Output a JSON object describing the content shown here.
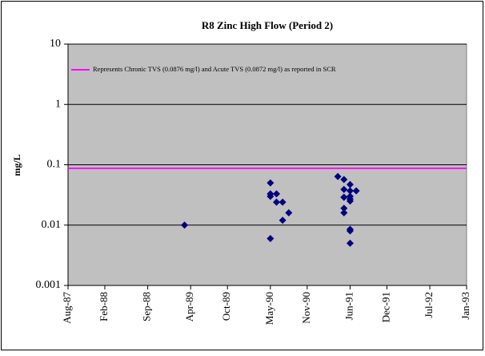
{
  "chart_data": {
    "type": "scatter",
    "title": "R8 Zinc High Flow (Period 2)",
    "y_label": "mg/L",
    "log_y": true,
    "grid": true,
    "plot_background": "#c0c0c0",
    "ylim": [
      0.001,
      10
    ],
    "yticks": [
      10,
      1,
      0.1,
      0.01,
      0.001
    ],
    "xlim": [
      "1987-08",
      "1993-01"
    ],
    "xticks": [
      {
        "value": "1987-08",
        "label": "Aug-87"
      },
      {
        "value": "1988-02",
        "label": "Feb-88"
      },
      {
        "value": "1988-09",
        "label": "Sep-88"
      },
      {
        "value": "1989-04",
        "label": "Apr-89"
      },
      {
        "value": "1989-10",
        "label": "Oct-89"
      },
      {
        "value": "1990-05",
        "label": "May-90"
      },
      {
        "value": "1990-11",
        "label": "Nov-90"
      },
      {
        "value": "1991-06",
        "label": "Jun-91"
      },
      {
        "value": "1991-12",
        "label": "Dec-91"
      },
      {
        "value": "1992-07",
        "label": "Jul-92"
      },
      {
        "value": "1993-01",
        "label": "Jan-93"
      }
    ],
    "reference_lines": {
      "name": "Represents Chronic TVS (0.0876 mg/l) and Acute TVS (0.0872 mg/l) as reported in SCR",
      "color": "#ff00ff",
      "values": [
        0.0876,
        0.0872
      ]
    },
    "series": [
      {
        "color": "#000080",
        "x": [
          "1989-03",
          "1990-05",
          "1990-05",
          "1990-05",
          "1990-05",
          "1990-06",
          "1990-06",
          "1990-07",
          "1990-07",
          "1990-08",
          "1991-04",
          "1991-05",
          "1991-05",
          "1991-05",
          "1991-05",
          "1991-05",
          "1991-05",
          "1991-06",
          "1991-06",
          "1991-06",
          "1991-06",
          "1991-06",
          "1991-06",
          "1991-06",
          "1991-06",
          "1991-07"
        ],
        "values": [
          0.01,
          0.033,
          0.05,
          0.03,
          0.006,
          0.033,
          0.024,
          0.024,
          0.012,
          0.016,
          0.064,
          0.039,
          0.029,
          0.057,
          0.029,
          0.019,
          0.016,
          0.037,
          0.047,
          0.027,
          0.025,
          0.008,
          0.0085,
          0.005,
          0.03,
          0.037
        ]
      }
    ]
  }
}
